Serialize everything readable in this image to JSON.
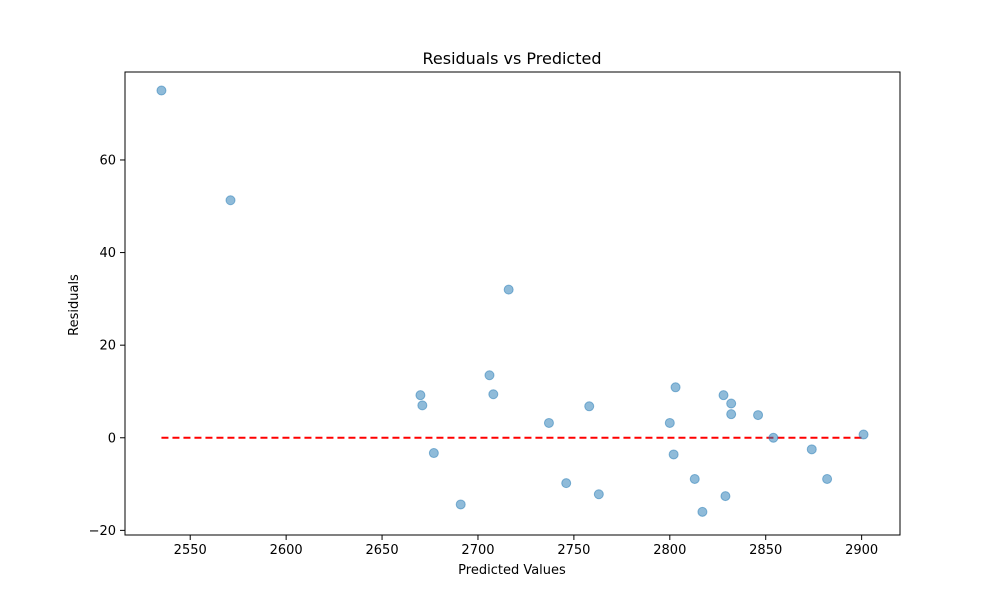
{
  "chart_data": {
    "type": "scatter",
    "title": "Residuals vs Predicted",
    "xlabel": "Predicted Values",
    "ylabel": "Residuals",
    "xlim": [
      2516,
      2920
    ],
    "ylim": [
      -21,
      79
    ],
    "xticks": [
      2550,
      2600,
      2650,
      2700,
      2750,
      2800,
      2850,
      2900
    ],
    "yticks": [
      -20,
      0,
      20,
      40,
      60
    ],
    "grid": false,
    "point_color": "#1f77b4",
    "point_alpha": 0.5,
    "reference_line": {
      "y": 0,
      "x_range": [
        2535,
        2901
      ],
      "color": "#ff0000",
      "style": "dashed"
    },
    "points": [
      {
        "x": 2535,
        "y": 75.0
      },
      {
        "x": 2571,
        "y": 51.3
      },
      {
        "x": 2670,
        "y": 9.2
      },
      {
        "x": 2671,
        "y": 7.0
      },
      {
        "x": 2677,
        "y": -3.3
      },
      {
        "x": 2691,
        "y": -14.4
      },
      {
        "x": 2706,
        "y": 13.5
      },
      {
        "x": 2708,
        "y": 9.4
      },
      {
        "x": 2716,
        "y": 32.0
      },
      {
        "x": 2737,
        "y": 3.2
      },
      {
        "x": 2746,
        "y": -9.8
      },
      {
        "x": 2758,
        "y": 6.8
      },
      {
        "x": 2763,
        "y": -12.2
      },
      {
        "x": 2800,
        "y": 3.2
      },
      {
        "x": 2802,
        "y": -3.6
      },
      {
        "x": 2803,
        "y": 10.9
      },
      {
        "x": 2813,
        "y": -8.9
      },
      {
        "x": 2817,
        "y": -16.0
      },
      {
        "x": 2828,
        "y": 9.2
      },
      {
        "x": 2829,
        "y": -12.6
      },
      {
        "x": 2832,
        "y": 7.4
      },
      {
        "x": 2832,
        "y": 5.1
      },
      {
        "x": 2846,
        "y": 4.9
      },
      {
        "x": 2854,
        "y": 0.0
      },
      {
        "x": 2874,
        "y": -2.5
      },
      {
        "x": 2882,
        "y": -8.9
      },
      {
        "x": 2901,
        "y": 0.7
      }
    ]
  }
}
